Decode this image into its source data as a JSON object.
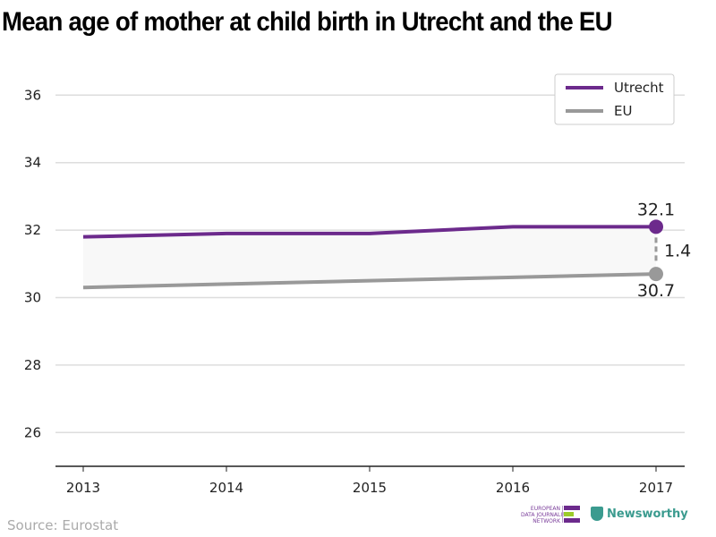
{
  "chart_data": {
    "type": "line",
    "title": "Mean age of mother at child birth in Utrecht and the EU",
    "x": [
      2013,
      2014,
      2015,
      2016,
      2017
    ],
    "series": [
      {
        "name": "Utrecht",
        "color": "#6c2a8c",
        "values": [
          31.8,
          31.9,
          31.9,
          32.1,
          32.1
        ]
      },
      {
        "name": "EU",
        "color": "#999999",
        "values": [
          30.3,
          30.4,
          30.5,
          30.6,
          30.7
        ]
      }
    ],
    "ylim": [
      25,
      37
    ],
    "yticks": [
      26,
      28,
      30,
      32,
      34,
      36
    ],
    "grid": true,
    "legend": "top-right",
    "annotations": {
      "utrecht_last": "32.1",
      "eu_last": "30.7",
      "difference": "1.4"
    }
  },
  "source": "Source: Eurostat",
  "logos": {
    "edjnet": [
      "EUROPEAN",
      "DATA JOURNALISM",
      "NETWORK"
    ],
    "newsworthy": "Newsworthy"
  }
}
